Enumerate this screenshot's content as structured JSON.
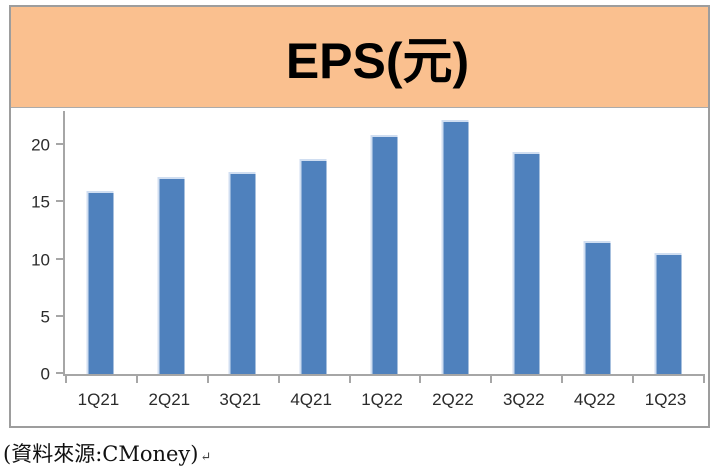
{
  "header": {
    "bg_color": "#FAC08F"
  },
  "chart_data": {
    "type": "bar",
    "title": "EPS(元)",
    "categories": [
      "1Q21",
      "2Q21",
      "3Q21",
      "4Q21",
      "1Q22",
      "2Q22",
      "3Q22",
      "4Q22",
      "1Q23"
    ],
    "values": [
      16.0,
      17.2,
      17.7,
      18.8,
      20.9,
      22.2,
      19.4,
      11.6,
      10.6
    ],
    "xlabel": "",
    "ylabel": "",
    "ylim": [
      0,
      23
    ],
    "yticks": [
      0,
      5,
      10,
      15,
      20
    ],
    "grid": false,
    "legend": "none",
    "bar_color": "#4F81BD",
    "axis_color": "#A6A6A6",
    "label_color": "#2B2B2B"
  },
  "caption": {
    "text": "(資料來源:CMoney)",
    "return_mark": "↵"
  }
}
